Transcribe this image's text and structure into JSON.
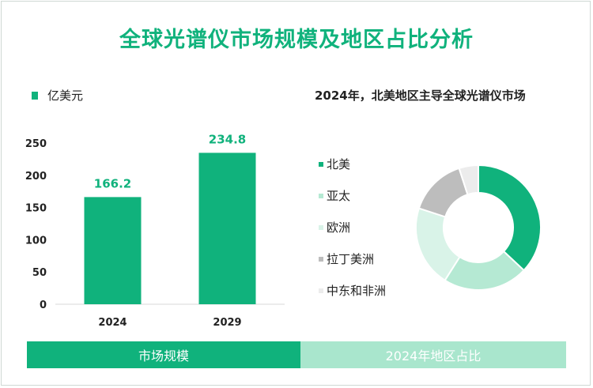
{
  "title": "全球光谱仪市场规模及地区占比分析",
  "unit_label": "亿美元",
  "colors": {
    "accent": "#10b27c",
    "footer_right": "#a9e6cd",
    "axis_text": "#222222"
  },
  "footer": {
    "left_label": "市场规模",
    "right_label": "2024年地区占比"
  },
  "chart_data": [
    {
      "type": "bar",
      "categories": [
        "2024",
        "2029"
      ],
      "values": [
        166.2,
        234.8
      ],
      "data_labels": [
        "166.2",
        "234.8"
      ],
      "yticks": [
        0,
        50,
        100,
        150,
        200,
        250
      ],
      "ylim": [
        0,
        250
      ],
      "ylabel": "亿美元",
      "grid": false,
      "color": "#10b27c"
    },
    {
      "type": "pie",
      "donut": true,
      "title": "2024年，北美地区主导全球光谱仪市场",
      "labels": [
        "北美",
        "亚太",
        "欧洲",
        "拉丁美洲",
        "中东和非洲"
      ],
      "values": [
        37,
        22,
        21,
        15,
        5
      ],
      "colors": [
        "#10b27c",
        "#b5e9d3",
        "#d9f3e8",
        "#bdbdbd",
        "#ececec"
      ],
      "legend_position": "left"
    }
  ]
}
